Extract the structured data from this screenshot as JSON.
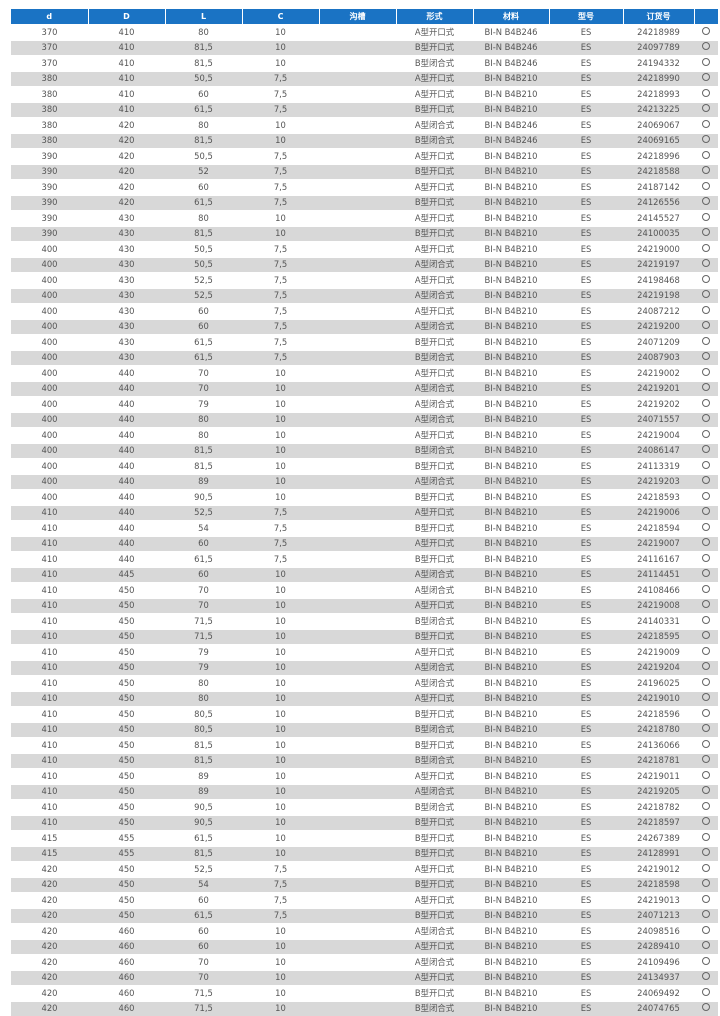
{
  "table": {
    "headers": [
      "d",
      "D",
      "L",
      "C",
      "沟槽",
      "形式",
      "材料",
      "型号",
      "订货号",
      ""
    ],
    "row_marker_icon": "circle-outline-icon",
    "header_color": "#1a73c4",
    "alt_row_color": "#d8d8d8",
    "rows": [
      [
        "370",
        "410",
        "80",
        "10",
        "",
        "A型开口式",
        "BI-N B4B246",
        "ES",
        "24218989"
      ],
      [
        "370",
        "410",
        "81,5",
        "10",
        "",
        "B型开口式",
        "BI-N B4B246",
        "ES",
        "24097789"
      ],
      [
        "370",
        "410",
        "81,5",
        "10",
        "",
        "B型闭合式",
        "BI-N B4B246",
        "ES",
        "24194332"
      ],
      [
        "380",
        "410",
        "50,5",
        "7,5",
        "",
        "A型开口式",
        "BI-N B4B210",
        "ES",
        "24218990"
      ],
      [
        "380",
        "410",
        "60",
        "7,5",
        "",
        "A型开口式",
        "BI-N B4B210",
        "ES",
        "24218993"
      ],
      [
        "380",
        "410",
        "61,5",
        "7,5",
        "",
        "B型开口式",
        "BI-N B4B210",
        "ES",
        "24213225"
      ],
      [
        "380",
        "420",
        "80",
        "10",
        "",
        "A型闭合式",
        "BI-N B4B246",
        "ES",
        "24069067"
      ],
      [
        "380",
        "420",
        "81,5",
        "10",
        "",
        "B型闭合式",
        "BI-N B4B246",
        "ES",
        "24069165"
      ],
      [
        "390",
        "420",
        "50,5",
        "7,5",
        "",
        "A型开口式",
        "BI-N B4B210",
        "ES",
        "24218996"
      ],
      [
        "390",
        "420",
        "52",
        "7,5",
        "",
        "B型开口式",
        "BI-N B4B210",
        "ES",
        "24218588"
      ],
      [
        "390",
        "420",
        "60",
        "7,5",
        "",
        "A型开口式",
        "BI-N B4B210",
        "ES",
        "24187142"
      ],
      [
        "390",
        "420",
        "61,5",
        "7,5",
        "",
        "B型开口式",
        "BI-N B4B210",
        "ES",
        "24126556"
      ],
      [
        "390",
        "430",
        "80",
        "10",
        "",
        "A型开口式",
        "BI-N B4B210",
        "ES",
        "24145527"
      ],
      [
        "390",
        "430",
        "81,5",
        "10",
        "",
        "B型开口式",
        "BI-N B4B210",
        "ES",
        "24100035"
      ],
      [
        "400",
        "430",
        "50,5",
        "7,5",
        "",
        "A型开口式",
        "BI-N B4B210",
        "ES",
        "24219000"
      ],
      [
        "400",
        "430",
        "50,5",
        "7,5",
        "",
        "A型闭合式",
        "BI-N B4B210",
        "ES",
        "24219197"
      ],
      [
        "400",
        "430",
        "52,5",
        "7,5",
        "",
        "A型开口式",
        "BI-N B4B210",
        "ES",
        "24198468"
      ],
      [
        "400",
        "430",
        "52,5",
        "7,5",
        "",
        "A型闭合式",
        "BI-N B4B210",
        "ES",
        "24219198"
      ],
      [
        "400",
        "430",
        "60",
        "7,5",
        "",
        "A型开口式",
        "BI-N B4B210",
        "ES",
        "24087212"
      ],
      [
        "400",
        "430",
        "60",
        "7,5",
        "",
        "A型闭合式",
        "BI-N B4B210",
        "ES",
        "24219200"
      ],
      [
        "400",
        "430",
        "61,5",
        "7,5",
        "",
        "B型开口式",
        "BI-N B4B210",
        "ES",
        "24071209"
      ],
      [
        "400",
        "430",
        "61,5",
        "7,5",
        "",
        "B型闭合式",
        "BI-N B4B210",
        "ES",
        "24087903"
      ],
      [
        "400",
        "440",
        "70",
        "10",
        "",
        "A型开口式",
        "BI-N B4B210",
        "ES",
        "24219002"
      ],
      [
        "400",
        "440",
        "70",
        "10",
        "",
        "A型闭合式",
        "BI-N B4B210",
        "ES",
        "24219201"
      ],
      [
        "400",
        "440",
        "79",
        "10",
        "",
        "A型闭合式",
        "BI-N B4B210",
        "ES",
        "24219202"
      ],
      [
        "400",
        "440",
        "80",
        "10",
        "",
        "A型闭合式",
        "BI-N B4B210",
        "ES",
        "24071557"
      ],
      [
        "400",
        "440",
        "80",
        "10",
        "",
        "A型开口式",
        "BI-N B4B210",
        "ES",
        "24219004"
      ],
      [
        "400",
        "440",
        "81,5",
        "10",
        "",
        "B型闭合式",
        "BI-N B4B210",
        "ES",
        "24086147"
      ],
      [
        "400",
        "440",
        "81,5",
        "10",
        "",
        "B型开口式",
        "BI-N B4B210",
        "ES",
        "24113319"
      ],
      [
        "400",
        "440",
        "89",
        "10",
        "",
        "A型闭合式",
        "BI-N B4B210",
        "ES",
        "24219203"
      ],
      [
        "400",
        "440",
        "90,5",
        "10",
        "",
        "B型开口式",
        "BI-N B4B210",
        "ES",
        "24218593"
      ],
      [
        "410",
        "440",
        "52,5",
        "7,5",
        "",
        "A型开口式",
        "BI-N B4B210",
        "ES",
        "24219006"
      ],
      [
        "410",
        "440",
        "54",
        "7,5",
        "",
        "B型开口式",
        "BI-N B4B210",
        "ES",
        "24218594"
      ],
      [
        "410",
        "440",
        "60",
        "7,5",
        "",
        "A型开口式",
        "BI-N B4B210",
        "ES",
        "24219007"
      ],
      [
        "410",
        "440",
        "61,5",
        "7,5",
        "",
        "B型开口式",
        "BI-N B4B210",
        "ES",
        "24116167"
      ],
      [
        "410",
        "445",
        "60",
        "10",
        "",
        "A型闭合式",
        "BI-N B4B210",
        "ES",
        "24114451"
      ],
      [
        "410",
        "450",
        "70",
        "10",
        "",
        "A型闭合式",
        "BI-N B4B210",
        "ES",
        "24108466"
      ],
      [
        "410",
        "450",
        "70",
        "10",
        "",
        "A型开口式",
        "BI-N B4B210",
        "ES",
        "24219008"
      ],
      [
        "410",
        "450",
        "71,5",
        "10",
        "",
        "B型闭合式",
        "BI-N B4B210",
        "ES",
        "24140331"
      ],
      [
        "410",
        "450",
        "71,5",
        "10",
        "",
        "B型开口式",
        "BI-N B4B210",
        "ES",
        "24218595"
      ],
      [
        "410",
        "450",
        "79",
        "10",
        "",
        "A型开口式",
        "BI-N B4B210",
        "ES",
        "24219009"
      ],
      [
        "410",
        "450",
        "79",
        "10",
        "",
        "A型闭合式",
        "BI-N B4B210",
        "ES",
        "24219204"
      ],
      [
        "410",
        "450",
        "80",
        "10",
        "",
        "A型闭合式",
        "BI-N B4B210",
        "ES",
        "24196025"
      ],
      [
        "410",
        "450",
        "80",
        "10",
        "",
        "A型开口式",
        "BI-N B4B210",
        "ES",
        "24219010"
      ],
      [
        "410",
        "450",
        "80,5",
        "10",
        "",
        "B型开口式",
        "BI-N B4B210",
        "ES",
        "24218596"
      ],
      [
        "410",
        "450",
        "80,5",
        "10",
        "",
        "B型闭合式",
        "BI-N B4B210",
        "ES",
        "24218780"
      ],
      [
        "410",
        "450",
        "81,5",
        "10",
        "",
        "B型开口式",
        "BI-N B4B210",
        "ES",
        "24136066"
      ],
      [
        "410",
        "450",
        "81,5",
        "10",
        "",
        "B型闭合式",
        "BI-N B4B210",
        "ES",
        "24218781"
      ],
      [
        "410",
        "450",
        "89",
        "10",
        "",
        "A型开口式",
        "BI-N B4B210",
        "ES",
        "24219011"
      ],
      [
        "410",
        "450",
        "89",
        "10",
        "",
        "A型闭合式",
        "BI-N B4B210",
        "ES",
        "24219205"
      ],
      [
        "410",
        "450",
        "90,5",
        "10",
        "",
        "B型闭合式",
        "BI-N B4B210",
        "ES",
        "24218782"
      ],
      [
        "410",
        "450",
        "90,5",
        "10",
        "",
        "B型开口式",
        "BI-N B4B210",
        "ES",
        "24218597"
      ],
      [
        "415",
        "455",
        "61,5",
        "10",
        "",
        "B型开口式",
        "BI-N B4B210",
        "ES",
        "24267389"
      ],
      [
        "415",
        "455",
        "81,5",
        "10",
        "",
        "B型开口式",
        "BI-N B4B210",
        "ES",
        "24128991"
      ],
      [
        "420",
        "450",
        "52,5",
        "7,5",
        "",
        "A型开口式",
        "BI-N B4B210",
        "ES",
        "24219012"
      ],
      [
        "420",
        "450",
        "54",
        "7,5",
        "",
        "B型开口式",
        "BI-N B4B210",
        "ES",
        "24218598"
      ],
      [
        "420",
        "450",
        "60",
        "7,5",
        "",
        "A型开口式",
        "BI-N B4B210",
        "ES",
        "24219013"
      ],
      [
        "420",
        "450",
        "61,5",
        "7,5",
        "",
        "B型开口式",
        "BI-N B4B210",
        "ES",
        "24071213"
      ],
      [
        "420",
        "460",
        "60",
        "10",
        "",
        "A型闭合式",
        "BI-N B4B210",
        "ES",
        "24098516"
      ],
      [
        "420",
        "460",
        "60",
        "10",
        "",
        "A型开口式",
        "BI-N B4B210",
        "ES",
        "24289410"
      ],
      [
        "420",
        "460",
        "70",
        "10",
        "",
        "A型闭合式",
        "BI-N B4B210",
        "ES",
        "24109496"
      ],
      [
        "420",
        "460",
        "70",
        "10",
        "",
        "A型开口式",
        "BI-N B4B210",
        "ES",
        "24134937"
      ],
      [
        "420",
        "460",
        "71,5",
        "10",
        "",
        "B型开口式",
        "BI-N B4B210",
        "ES",
        "24069492"
      ],
      [
        "420",
        "460",
        "71,5",
        "10",
        "",
        "B型闭合式",
        "BI-N B4B210",
        "ES",
        "24074765"
      ]
    ]
  }
}
